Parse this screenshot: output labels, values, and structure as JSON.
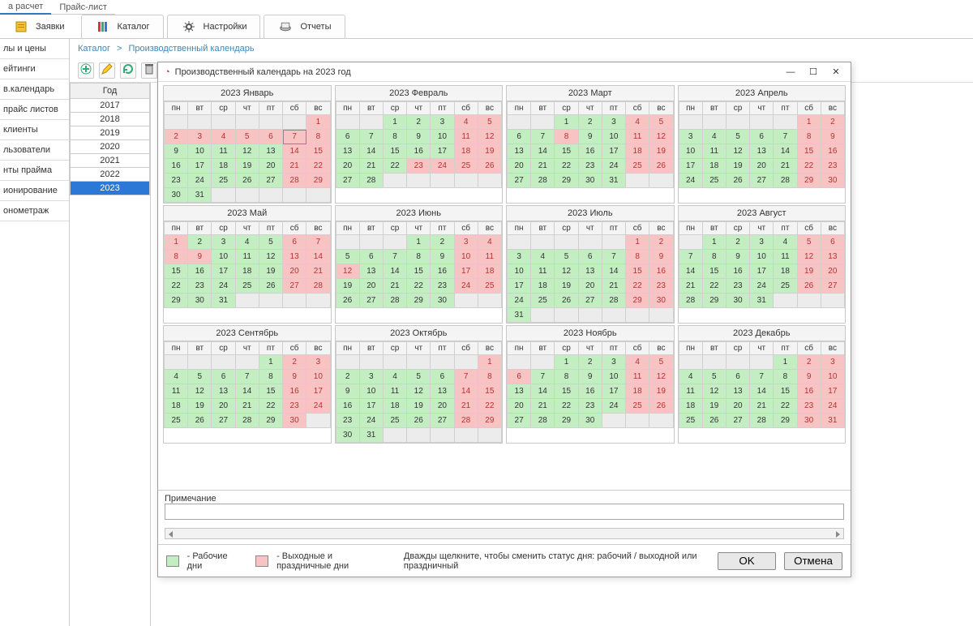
{
  "colors": {
    "work": "#c2eec2",
    "off": "#f8c3c3",
    "sel": "#2c78d6",
    "accent": "#3b87b9"
  },
  "toptabs": {
    "items": [
      "а расчет",
      "Прайс-лист"
    ],
    "active_index": 0
  },
  "maintabs": [
    {
      "label": "Заявки",
      "icon": "requests-icon"
    },
    {
      "label": "Каталог",
      "icon": "catalog-icon",
      "boxed": true
    },
    {
      "label": "Настройки",
      "icon": "settings-icon",
      "boxed": true
    },
    {
      "label": "Отчеты",
      "icon": "reports-icon",
      "boxed": true
    }
  ],
  "sidebar": {
    "items": [
      "лы и цены",
      "ейтинги",
      "в.календарь",
      "прайс листов",
      "клиенты",
      "льзователи",
      "нты прайма",
      "ионирование",
      "онометраж"
    ]
  },
  "breadcrumb": {
    "root": "Каталог",
    "sep": ">",
    "leaf": "Производственный календарь"
  },
  "toolbar_icons": [
    "add-icon",
    "edit-icon",
    "refresh-icon",
    "delete-icon"
  ],
  "yearlist": {
    "header": "Год",
    "years": [
      2017,
      2018,
      2019,
      2020,
      2021,
      2022,
      2023
    ],
    "selected": 2023
  },
  "modal": {
    "title": "Производственный календарь на 2023 год",
    "weekdays": [
      "пн",
      "вт",
      "ср",
      "чт",
      "пт",
      "сб",
      "вс"
    ],
    "today": {
      "month_index": 0,
      "day": 7
    },
    "months": [
      {
        "name": "2023 Январь",
        "startDow": 6,
        "days": 31,
        "off": [
          1,
          2,
          3,
          4,
          5,
          6,
          7,
          8,
          14,
          15,
          21,
          22,
          28,
          29
        ]
      },
      {
        "name": "2023 Февраль",
        "startDow": 2,
        "days": 28,
        "off": [
          4,
          5,
          11,
          12,
          18,
          19,
          23,
          24,
          25,
          26
        ]
      },
      {
        "name": "2023 Март",
        "startDow": 2,
        "days": 31,
        "off": [
          4,
          5,
          8,
          11,
          12,
          18,
          19,
          25,
          26
        ]
      },
      {
        "name": "2023 Апрель",
        "startDow": 5,
        "days": 30,
        "off": [
          1,
          2,
          8,
          9,
          15,
          16,
          22,
          23,
          29,
          30
        ]
      },
      {
        "name": "2023 Май",
        "startDow": 0,
        "days": 31,
        "off": [
          1,
          6,
          7,
          8,
          9,
          13,
          14,
          20,
          21,
          27,
          28
        ]
      },
      {
        "name": "2023 Июнь",
        "startDow": 3,
        "days": 30,
        "off": [
          3,
          4,
          10,
          11,
          12,
          17,
          18,
          24,
          25
        ]
      },
      {
        "name": "2023 Июль",
        "startDow": 5,
        "days": 31,
        "off": [
          1,
          2,
          8,
          9,
          15,
          16,
          22,
          23,
          29,
          30
        ]
      },
      {
        "name": "2023 Август",
        "startDow": 1,
        "days": 31,
        "off": [
          5,
          6,
          12,
          13,
          19,
          20,
          26,
          27
        ]
      },
      {
        "name": "2023 Сентябрь",
        "startDow": 4,
        "days": 30,
        "off": [
          2,
          3,
          9,
          10,
          16,
          17,
          23,
          24,
          30
        ]
      },
      {
        "name": "2023 Октябрь",
        "startDow": 6,
        "days": 31,
        "off": [
          1,
          7,
          8,
          14,
          15,
          21,
          22,
          28,
          29
        ]
      },
      {
        "name": "2023 Ноябрь",
        "startDow": 2,
        "days": 30,
        "off": [
          4,
          5,
          6,
          11,
          12,
          18,
          19,
          25,
          26
        ]
      },
      {
        "name": "2023 Декабрь",
        "startDow": 4,
        "days": 31,
        "off": [
          2,
          3,
          9,
          10,
          16,
          17,
          23,
          24,
          30,
          31
        ]
      }
    ],
    "notes_label": "Примечание",
    "notes_value": "",
    "legend": {
      "work": "- Рабочие дни",
      "off": "- Выходные и праздничные дни",
      "hint": "Дважды щелкните, чтобы сменить статус дня: рабочий / выходной или праздничный"
    },
    "buttons": {
      "ok": "OK",
      "cancel": "Отмена"
    }
  }
}
